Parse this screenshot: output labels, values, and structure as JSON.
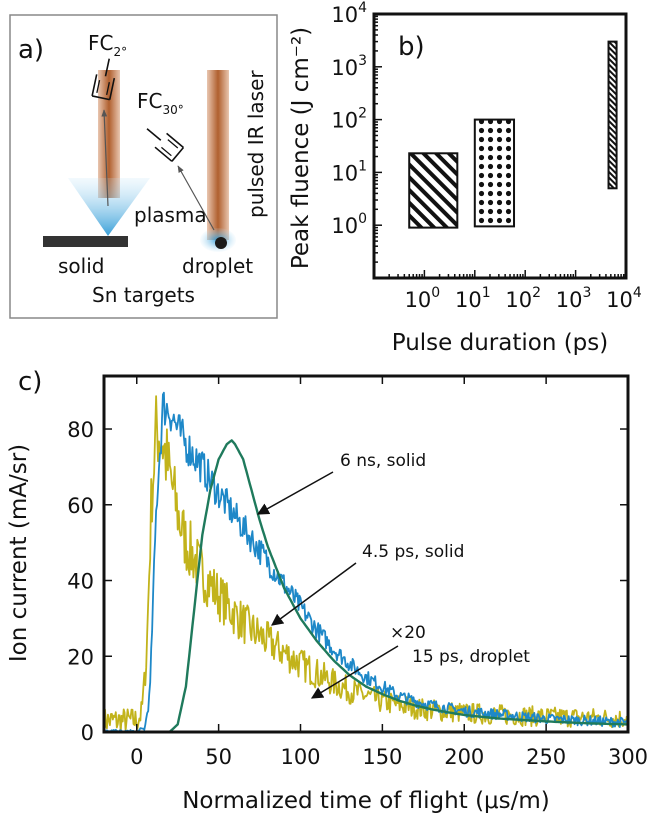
{
  "panel_a": {
    "panel_label": "a)",
    "fc2_label": "FC",
    "fc2_sub": "2°",
    "fc30_label": "FC",
    "fc30_sub": "30°",
    "laser_label": "pulsed IR laser",
    "plasma_label": "plasma",
    "solid_label": "solid",
    "droplet_label": "droplet",
    "targets_label": "Sn targets",
    "colors": {
      "laser": "#b5663a",
      "plasma": "#3aa0d8",
      "target": "#333333"
    }
  },
  "chart_data": [
    {
      "type": "bar",
      "panel_label": "b)",
      "xlabel": "Pulse duration (ps)",
      "ylabel": "Peak fluence (J cm⁻²)",
      "x_scale": "log",
      "y_scale": "log",
      "xlim": [
        0.1,
        10000
      ],
      "ylim": [
        0.1,
        10000
      ],
      "xticks": [
        {
          "base": "10",
          "exp": "0"
        },
        {
          "base": "10",
          "exp": "1"
        },
        {
          "base": "10",
          "exp": "2"
        },
        {
          "base": "10",
          "exp": "3"
        },
        {
          "base": "10",
          "exp": "4"
        }
      ],
      "yticks": [
        {
          "base": "10",
          "exp": "0"
        },
        {
          "base": "10",
          "exp": "1"
        },
        {
          "base": "10",
          "exp": "2"
        },
        {
          "base": "10",
          "exp": "3"
        },
        {
          "base": "10",
          "exp": "4"
        }
      ],
      "ranges": [
        {
          "x_min": 0.5,
          "x_max": 4.5,
          "y_min": 0.9,
          "y_max": 23,
          "pattern": "hatch"
        },
        {
          "x_min": 10,
          "x_max": 60,
          "y_min": 0.95,
          "y_max": 100,
          "pattern": "dots"
        },
        {
          "x_min": 4500,
          "x_max": 6500,
          "y_min": 5,
          "y_max": 3000,
          "pattern": "fine-hatch"
        }
      ]
    },
    {
      "type": "line",
      "panel_label": "c)",
      "xlabel": "Normalized time of flight (μs/m)",
      "ylabel": "Ion current (mA/sr)",
      "xlim": [
        -20,
        300
      ],
      "ylim": [
        0,
        94
      ],
      "xticks": [
        0,
        50,
        100,
        150,
        200,
        250,
        300
      ],
      "yticks": [
        0,
        20,
        40,
        60,
        80
      ],
      "series": [
        {
          "name": "6 ns, solid",
          "color": "#1f7a5c",
          "x": [
            -20,
            20,
            25,
            30,
            35,
            40,
            45,
            50,
            55,
            58,
            60,
            65,
            70,
            75,
            80,
            90,
            100,
            110,
            120,
            130,
            140,
            150,
            160,
            170,
            180,
            190,
            200,
            220,
            250,
            275,
            300
          ],
          "y": [
            0,
            0,
            2,
            12,
            32,
            52,
            64,
            72,
            76,
            77,
            76,
            72,
            64,
            56,
            49,
            38,
            30,
            24,
            19,
            15,
            12,
            10,
            8.3,
            7,
            6,
            5.2,
            4.5,
            3.6,
            2.8,
            2.3,
            2
          ]
        },
        {
          "name": "4.5 ps, solid",
          "color": "#1e88c8",
          "x": [
            -20,
            0,
            5,
            8,
            12,
            16,
            20,
            25,
            30,
            40,
            50,
            60,
            70,
            80,
            90,
            100,
            110,
            120,
            130,
            140,
            150,
            160,
            175,
            200,
            225,
            250,
            275,
            300
          ],
          "y": [
            0,
            0,
            1,
            10,
            60,
            86,
            85,
            80,
            76,
            70,
            63,
            57,
            51,
            45,
            39,
            33,
            27,
            22,
            18,
            14.5,
            12,
            9.5,
            7.5,
            5.5,
            4.5,
            3.5,
            3,
            2.5
          ]
        },
        {
          "name": "15 ps, droplet",
          "color": "#c2b31b",
          "x": [
            -20,
            0,
            3,
            6,
            9,
            12,
            15,
            18,
            22,
            26,
            30,
            40,
            50,
            60,
            70,
            80,
            90,
            100,
            110,
            120,
            130,
            140,
            150,
            175,
            200,
            225,
            250,
            275,
            300
          ],
          "y": [
            3,
            3,
            5,
            20,
            62,
            80,
            78,
            72,
            64,
            56,
            50,
            42,
            36,
            31,
            27,
            24,
            21,
            18,
            15.5,
            13,
            11,
            9.5,
            8,
            6,
            5,
            4.5,
            4,
            3.8,
            3.5
          ]
        }
      ],
      "annotations": [
        {
          "text": "6 ns, solid"
        },
        {
          "text": "4.5 ps, solid"
        },
        {
          "text": "×20"
        },
        {
          "text": "15 ps, droplet"
        }
      ]
    }
  ]
}
